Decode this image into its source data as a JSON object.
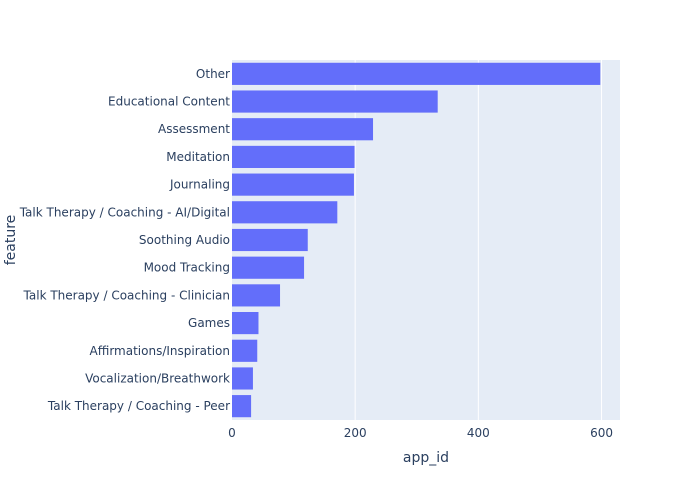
{
  "chart_data": {
    "type": "bar",
    "orientation": "horizontal",
    "xlabel": "app_id",
    "ylabel": "feature",
    "xlim": [
      0,
      630
    ],
    "x_ticks": [
      0,
      200,
      400,
      600
    ],
    "grid": true,
    "colors": {
      "bar": "#636efa",
      "plot_bg": "#e5ecf6",
      "grid": "#ffffff",
      "text": "#2a3f5f"
    },
    "categories": [
      "Other",
      "Educational Content",
      "Assessment",
      "Meditation",
      "Journaling",
      "Talk Therapy / Coaching - AI/Digital",
      "Soothing Audio",
      "Mood Tracking",
      "Talk Therapy / Coaching - Clinician",
      "Games",
      "Affirmations/Inspiration",
      "Vocalization/Breathwork",
      "Talk Therapy / Coaching - Peer"
    ],
    "values": [
      598,
      334,
      229,
      199,
      198,
      171,
      123,
      117,
      78,
      43,
      41,
      34,
      31
    ]
  }
}
